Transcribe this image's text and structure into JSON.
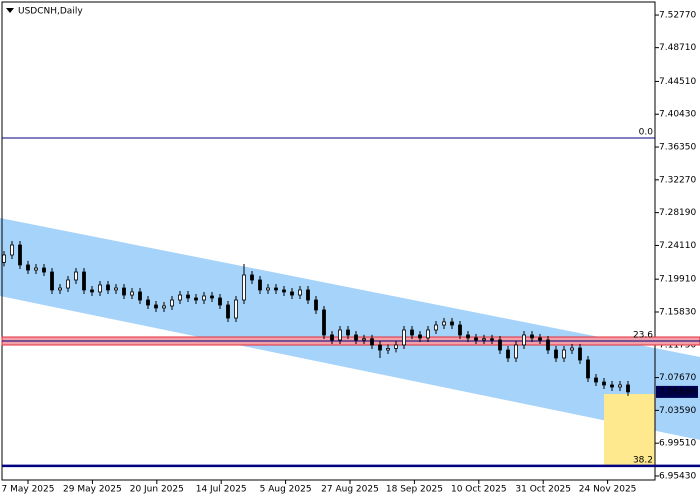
{
  "chart_data": {
    "type": "candlestick",
    "title": "USDCNH,Daily",
    "ylim": [
      6.9493,
      7.5439
    ],
    "yticks": [
      {
        "value": 7.5277,
        "label": "7.52770"
      },
      {
        "value": 7.4871,
        "label": "7.48710"
      },
      {
        "value": 7.4451,
        "label": "7.44510"
      },
      {
        "value": 7.4043,
        "label": "7.40430"
      },
      {
        "value": 7.3635,
        "label": "7.36350"
      },
      {
        "value": 7.3227,
        "label": "7.32270"
      },
      {
        "value": 7.2819,
        "label": "7.28190"
      },
      {
        "value": 7.2411,
        "label": "7.24110"
      },
      {
        "value": 7.1991,
        "label": "7.19910"
      },
      {
        "value": 7.1583,
        "label": "7.15830"
      },
      {
        "value": 7.1175,
        "label": "7.11750"
      },
      {
        "value": 7.0767,
        "label": "7.07670"
      },
      {
        "value": 7.0359,
        "label": "7.03590"
      },
      {
        "value": 6.9951,
        "label": "6.99510"
      },
      {
        "value": 6.9543,
        "label": "6.95430"
      }
    ],
    "categories": [
      "7 May 2025",
      "29 May 2025",
      "20 Jun 2025",
      "14 Jul 2025",
      "5 Aug 2025",
      "27 Aug 2025",
      "18 Sep 2025",
      "10 Oct 2025",
      "31 Oct 2025",
      "24 Nov 2025"
    ],
    "open": [
      7.22,
      7.2292,
      7.2416,
      7.2168,
      7.2105,
      7.213,
      7.208,
      7.1857,
      7.1881,
      7.1981,
      7.208,
      7.1857,
      7.1832,
      7.1919,
      7.1857,
      7.1881,
      7.1794,
      7.1832,
      7.1732,
      7.167,
      7.1633,
      7.1658,
      7.1732,
      7.1794,
      7.1757,
      7.1732,
      7.1782,
      7.1757,
      7.167,
      7.1508,
      7.1732,
      7.2043,
      7.1981,
      7.1857,
      7.1881,
      7.1857,
      7.1832,
      7.1794,
      7.1857,
      7.1732,
      7.1608,
      7.1297,
      7.1235,
      7.1359,
      7.1297,
      7.1235,
      7.125,
      7.1173,
      7.111,
      7.113,
      7.1173,
      7.1359,
      7.1297,
      7.126,
      7.1359,
      7.1421,
      7.1459,
      7.1421,
      7.1297,
      7.126,
      7.1235,
      7.125,
      7.1235,
      7.111,
      7.1011,
      7.1173,
      7.1297,
      7.126,
      7.1235,
      7.111,
      7.1011,
      7.111,
      7.1135,
      7.0986,
      7.0762,
      7.0712,
      7.0675,
      7.065,
      7.0675
    ],
    "high": [
      7.2342,
      7.2466,
      7.2466,
      7.2218,
      7.218,
      7.218,
      7.213,
      7.1931,
      7.2031,
      7.213,
      7.213,
      7.1907,
      7.1969,
      7.1969,
      7.1931,
      7.1931,
      7.1882,
      7.1882,
      7.1782,
      7.172,
      7.1708,
      7.1782,
      7.1844,
      7.1844,
      7.1807,
      7.1832,
      7.1832,
      7.1807,
      7.172,
      7.1782,
      7.218,
      7.2093,
      7.2031,
      7.1931,
      7.1931,
      7.1907,
      7.1882,
      7.1907,
      7.1907,
      7.1782,
      7.1658,
      7.1347,
      7.1409,
      7.1409,
      7.1347,
      7.13,
      7.13,
      7.1223,
      7.118,
      7.1223,
      7.1409,
      7.1409,
      7.1347,
      7.1409,
      7.1471,
      7.1509,
      7.1509,
      7.1471,
      7.1347,
      7.131,
      7.13,
      7.13,
      7.1285,
      7.116,
      7.1223,
      7.1347,
      7.1347,
      7.131,
      7.1285,
      7.116,
      7.116,
      7.1185,
      7.1185,
      7.1036,
      7.0812,
      7.0762,
      7.0725,
      7.0725,
      7.0725
    ],
    "low": [
      7.215,
      7.2242,
      7.2118,
      7.2055,
      7.2055,
      7.203,
      7.1807,
      7.1807,
      7.1831,
      7.1931,
      7.1807,
      7.1782,
      7.1782,
      7.1807,
      7.1807,
      7.1744,
      7.1744,
      7.1682,
      7.162,
      7.1583,
      7.1583,
      7.1608,
      7.1682,
      7.1707,
      7.1682,
      7.1682,
      7.1707,
      7.162,
      7.1458,
      7.1458,
      7.1682,
      7.1931,
      7.1807,
      7.1807,
      7.1807,
      7.1782,
      7.1744,
      7.1744,
      7.1682,
      7.1558,
      7.1247,
      7.1185,
      7.1185,
      7.1247,
      7.1185,
      7.1185,
      7.1123,
      7.101,
      7.106,
      7.108,
      7.1123,
      7.1247,
      7.121,
      7.121,
      7.1309,
      7.1371,
      7.1371,
      7.1247,
      7.121,
      7.1185,
      7.1185,
      7.1185,
      7.106,
      7.0961,
      7.0961,
      7.1123,
      7.121,
      7.1185,
      7.106,
      7.0961,
      7.0961,
      7.106,
      7.0936,
      7.0712,
      7.0662,
      7.0625,
      7.06,
      7.06,
      7.0539
    ],
    "close": [
      7.2292,
      7.2416,
      7.2168,
      7.2105,
      7.213,
      7.208,
      7.1857,
      7.1881,
      7.1981,
      7.208,
      7.1857,
      7.1832,
      7.1919,
      7.1857,
      7.1881,
      7.1794,
      7.1832,
      7.1732,
      7.167,
      7.1633,
      7.1658,
      7.1732,
      7.1794,
      7.1757,
      7.1732,
      7.1782,
      7.1757,
      7.167,
      7.1508,
      7.1732,
      7.2043,
      7.1981,
      7.1857,
      7.1881,
      7.1857,
      7.1832,
      7.1794,
      7.1857,
      7.1732,
      7.1608,
      7.1297,
      7.1235,
      7.1359,
      7.1297,
      7.1235,
      7.125,
      7.1173,
      7.111,
      7.113,
      7.1173,
      7.1359,
      7.1297,
      7.126,
      7.1359,
      7.1421,
      7.1459,
      7.1421,
      7.1297,
      7.126,
      7.1235,
      7.125,
      7.1235,
      7.111,
      7.1011,
      7.1173,
      7.1297,
      7.126,
      7.1235,
      7.111,
      7.1011,
      7.111,
      7.1135,
      7.0986,
      7.0762,
      7.0712,
      7.0675,
      7.065,
      7.0675,
      7.0589
    ],
    "levels": [
      {
        "label": "0.0",
        "value": 7.3747,
        "color": "#000080"
      },
      {
        "label": "23.6",
        "value": 7.1222,
        "color": "#000080"
      },
      {
        "label": "38.2",
        "value": 6.9668,
        "color": "#000080"
      }
    ],
    "last_price": {
      "value": 7.05889,
      "label": "7.05889"
    }
  }
}
